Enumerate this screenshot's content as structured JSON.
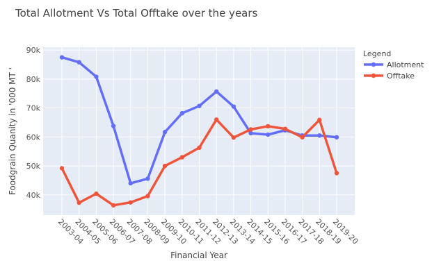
{
  "chart_data": {
    "type": "line",
    "title": "Total Allotment Vs Total Offtake over the years",
    "xlabel": "Financial Year",
    "ylabel": "Foodgrain Quanity in '000 MT '",
    "ylim": [
      33000,
      91000
    ],
    "yticks": [
      40000,
      50000,
      60000,
      70000,
      80000,
      90000
    ],
    "ytick_labels": [
      "40k",
      "50k",
      "60k",
      "70k",
      "80k",
      "90k"
    ],
    "grid": true,
    "legend_title": "Legend",
    "legend_position": "top-right",
    "categories": [
      "2003-04",
      "2004-05",
      "2005-06",
      "2006-07",
      "2007-08",
      "2008-09",
      "2009-10",
      "2010-11",
      "2011-12",
      "2012-13",
      "2013-14",
      "2014-15",
      "2015-16",
      "2016-17",
      "2017-18",
      "2018-19",
      "2019-20"
    ],
    "series": [
      {
        "name": "Allotment",
        "color": "#636efa",
        "values": [
          87500,
          85800,
          80800,
          63800,
          44000,
          45600,
          61700,
          68200,
          70700,
          75700,
          70500,
          61300,
          60800,
          62300,
          60500,
          60500,
          59900
        ]
      },
      {
        "name": "Offtake",
        "color": "#ef553b",
        "values": [
          49200,
          37300,
          40400,
          36400,
          37400,
          39600,
          50000,
          53000,
          56300,
          66000,
          59800,
          62600,
          63700,
          62800,
          59900,
          65900,
          47500
        ]
      }
    ]
  }
}
